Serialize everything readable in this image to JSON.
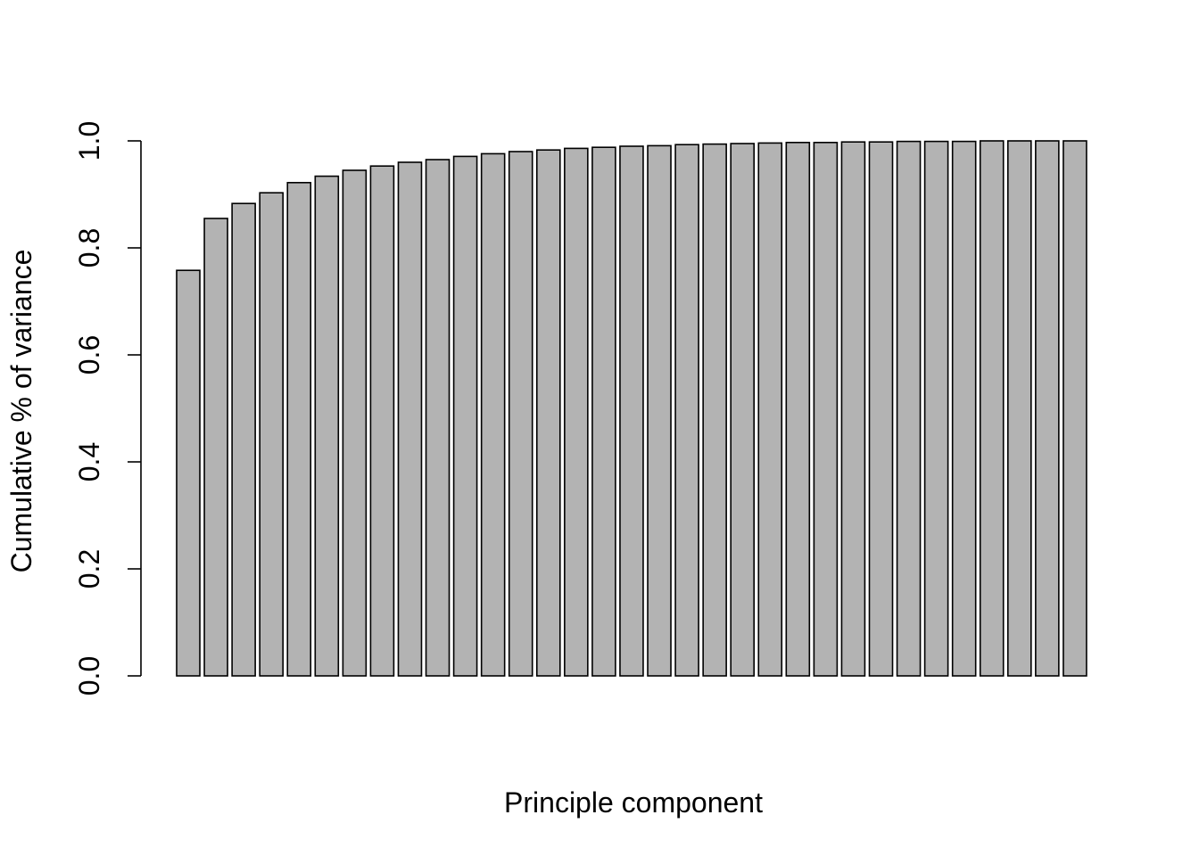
{
  "chart_data": {
    "type": "bar",
    "title": "",
    "xlabel": "Principle component",
    "ylabel": "Cumulative % of variance",
    "ylim": [
      0,
      1
    ],
    "yticks": [
      "0.0",
      "0.2",
      "0.4",
      "0.6",
      "0.8",
      "1.0"
    ],
    "grid": false,
    "bar_color": "#b3b3b3",
    "bar_border_color": "#000000",
    "values": [
      0.758,
      0.855,
      0.883,
      0.903,
      0.922,
      0.934,
      0.945,
      0.953,
      0.96,
      0.965,
      0.971,
      0.976,
      0.98,
      0.983,
      0.986,
      0.988,
      0.99,
      0.991,
      0.993,
      0.994,
      0.995,
      0.996,
      0.997,
      0.997,
      0.998,
      0.998,
      0.999,
      0.999,
      0.999,
      1.0,
      1.0,
      1.0,
      1.0
    ]
  }
}
